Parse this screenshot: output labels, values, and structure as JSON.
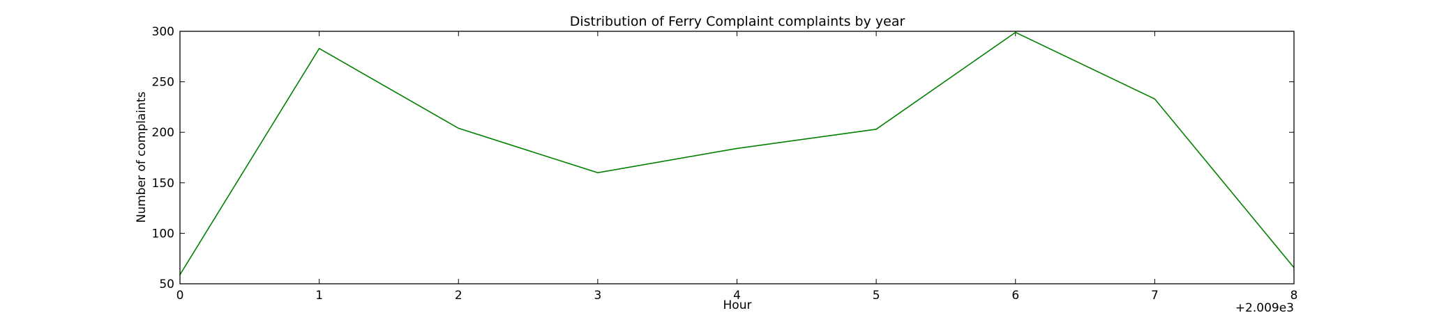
{
  "chart_data": {
    "type": "line",
    "title": "Distribution of  Ferry Complaint complaints by year",
    "xlabel": "Hour",
    "ylabel": "Number of complaints",
    "x_offset_label": "+2.009e3",
    "x": [
      0,
      1,
      2,
      3,
      4,
      5,
      6,
      7,
      8
    ],
    "series": [
      {
        "values": [
          59,
          283,
          204,
          160,
          184,
          203,
          299,
          233,
          66
        ],
        "color": "#008000"
      }
    ],
    "xlim": [
      0,
      8
    ],
    "ylim": [
      50,
      300
    ],
    "xticks": [
      "0",
      "1",
      "2",
      "3",
      "4",
      "5",
      "6",
      "7",
      "8"
    ],
    "yticks": [
      "50",
      "100",
      "150",
      "200",
      "250",
      "300"
    ],
    "grid": false,
    "legend": false
  }
}
